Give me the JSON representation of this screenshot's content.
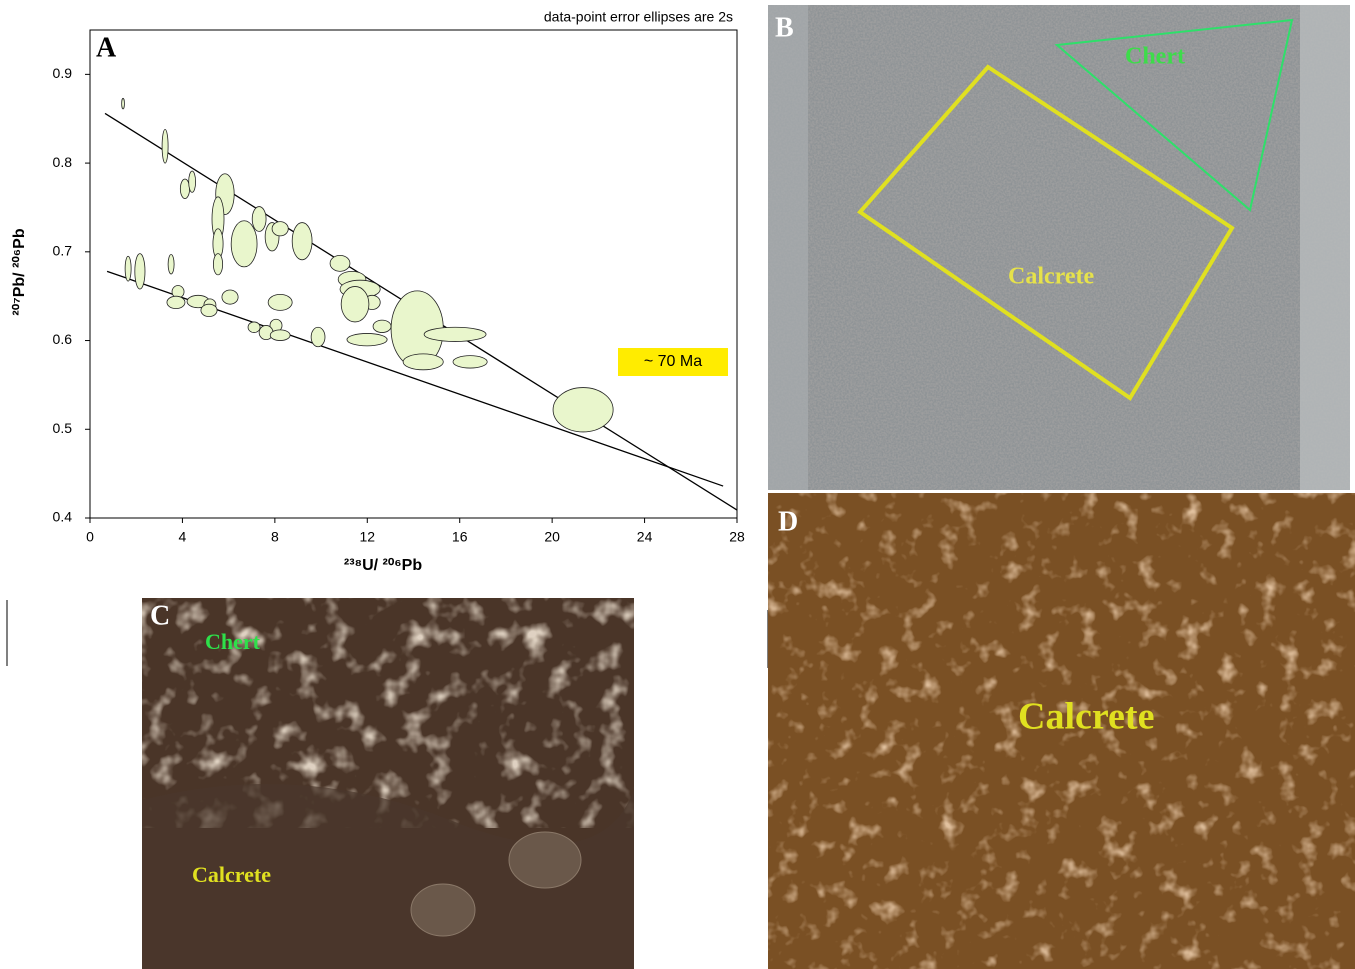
{
  "chart_data": {
    "type": "ellipse-scatter",
    "panel_label": "A",
    "note": "data-point error ellipses are 2s",
    "annotation": "~ 70 Ma",
    "x_label": "²³⁸U/ ²⁰⁶Pb",
    "y_label": "²⁰⁷Pb/ ²⁰⁶Pb",
    "xlim": [
      0,
      28
    ],
    "ylim": [
      0.4,
      0.95
    ],
    "xticks": [
      0,
      4,
      8,
      12,
      16,
      20,
      24,
      28
    ],
    "yticks": [
      0.4,
      0.5,
      0.6,
      0.7,
      0.8,
      0.9
    ],
    "color": "#e9f6cc",
    "x": [
      1.43,
      3.25,
      4.11,
      4.42,
      5.84,
      5.54,
      5.54,
      5.54,
      6.67,
      7.32,
      7.88,
      8.23,
      9.18,
      10.82,
      11.34,
      11.69,
      12.21,
      11.47,
      12.64,
      11.99,
      14.16,
      14.42,
      15.8,
      16.45,
      9.87,
      21.34,
      1.65,
      2.16,
      3.51,
      3.81,
      3.72,
      4.68,
      5.19,
      6.06,
      8.23,
      8.05,
      7.1,
      7.62,
      8.23,
      5.15
    ],
    "x_err": [
      0.06,
      0.13,
      0.2,
      0.15,
      0.4,
      0.26,
      0.22,
      0.2,
      0.56,
      0.3,
      0.3,
      0.35,
      0.43,
      0.43,
      0.6,
      0.87,
      0.35,
      0.6,
      0.39,
      0.87,
      1.13,
      0.87,
      1.34,
      0.74,
      0.3,
      1.3,
      0.13,
      0.22,
      0.13,
      0.26,
      0.39,
      0.48,
      0.26,
      0.35,
      0.52,
      0.26,
      0.26,
      0.3,
      0.43,
      0.35
    ],
    "values": [
      0.867,
      0.819,
      0.771,
      0.779,
      0.765,
      0.737,
      0.709,
      0.686,
      0.709,
      0.737,
      0.717,
      0.726,
      0.712,
      0.687,
      0.669,
      0.658,
      0.643,
      0.641,
      0.616,
      0.601,
      0.613,
      0.576,
      0.607,
      0.576,
      0.604,
      0.522,
      0.681,
      0.678,
      0.686,
      0.655,
      0.643,
      0.644,
      0.64,
      0.649,
      0.643,
      0.617,
      0.615,
      0.609,
      0.606,
      0.634
    ],
    "y_err": [
      0.006,
      0.019,
      0.011,
      0.012,
      0.023,
      0.025,
      0.017,
      0.012,
      0.026,
      0.014,
      0.016,
      0.008,
      0.021,
      0.009,
      0.009,
      0.01,
      0.008,
      0.02,
      0.007,
      0.007,
      0.043,
      0.009,
      0.008,
      0.007,
      0.011,
      0.025,
      0.014,
      0.02,
      0.011,
      0.007,
      0.007,
      0.007,
      0.007,
      0.008,
      0.009,
      0.007,
      0.006,
      0.008,
      0.006,
      0.007
    ],
    "lines": [
      {
        "x": [
          0.65,
          28
        ],
        "values": [
          0.856,
          0.409
        ]
      },
      {
        "x": [
          0.74,
          27.4
        ],
        "values": [
          0.678,
          0.436
        ]
      }
    ]
  },
  "panels": {
    "B": {
      "label": "B",
      "chert": "Chert",
      "calcrete": "Calcrete"
    },
    "C": {
      "label": "C",
      "chert": "Chert",
      "calcrete": "Calcrete"
    },
    "D": {
      "label": "D",
      "calcrete": "Calcrete"
    }
  }
}
